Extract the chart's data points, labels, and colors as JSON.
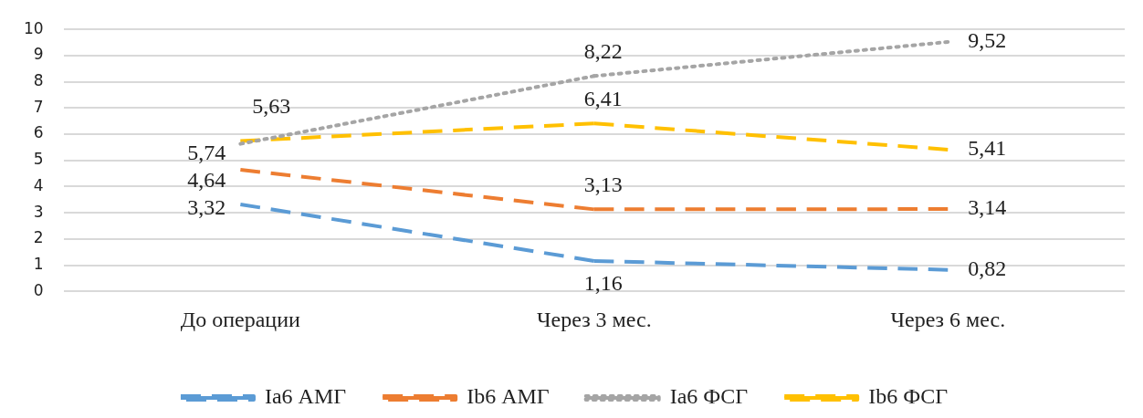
{
  "chart_data": {
    "type": "line",
    "categories": [
      "До операции",
      "Через 3 мес.",
      "Через 6 мес."
    ],
    "series": [
      {
        "name": "Ia6 АМГ",
        "color": "#5b9bd5",
        "line_style": "dashed",
        "values": [
          3.32,
          1.16,
          0.82
        ],
        "value_labels": [
          "3,32",
          "1,16",
          "0,82"
        ]
      },
      {
        "name": "Ib6 АМГ",
        "color": "#ed7d31",
        "line_style": "dashed",
        "values": [
          4.64,
          3.13,
          3.14
        ],
        "value_labels": [
          "4,64",
          "3,13",
          "3,14"
        ]
      },
      {
        "name": "Ia6 ФСГ",
        "color": "#a5a5a5",
        "line_style": "dotted",
        "values": [
          5.63,
          8.22,
          9.52
        ],
        "value_labels": [
          "5,63",
          "8,22",
          "9,52"
        ]
      },
      {
        "name": "Ib6 ФСГ",
        "color": "#ffc000",
        "line_style": "dashed",
        "values": [
          5.74,
          6.41,
          5.41
        ],
        "value_labels": [
          "5,74",
          "6,41",
          "5,41"
        ]
      }
    ],
    "ylim": [
      0,
      10
    ],
    "yticks": [
      0,
      1,
      2,
      3,
      4,
      5,
      6,
      7,
      8,
      9,
      10
    ],
    "grid": "y",
    "legend": "bottom",
    "marker": "none"
  }
}
